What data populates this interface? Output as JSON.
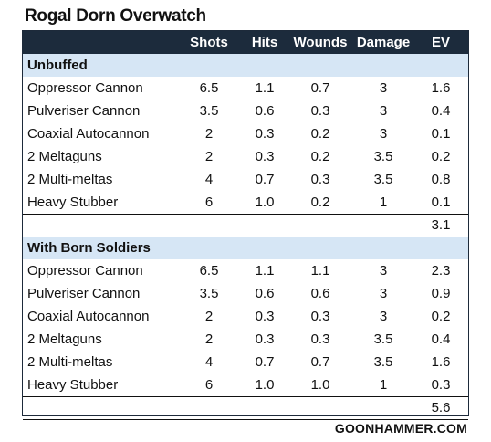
{
  "title": "Rogal Dorn Overwatch",
  "footer": "GOONHAMMER.COM",
  "columns": [
    "",
    "Shots",
    "Hits",
    "Wounds",
    "Damage",
    "EV"
  ],
  "sections": [
    {
      "label": "Unbuffed",
      "rows": [
        [
          "Oppressor Cannon",
          "6.5",
          "1.1",
          "0.7",
          "3",
          "1.6"
        ],
        [
          "Pulveriser Cannon",
          "3.5",
          "0.6",
          "0.3",
          "3",
          "0.4"
        ],
        [
          "Coaxial Autocannon",
          "2",
          "0.3",
          "0.2",
          "3",
          "0.1"
        ],
        [
          "2 Meltaguns",
          "2",
          "0.3",
          "0.2",
          "3.5",
          "0.2"
        ],
        [
          "2 Multi-meltas",
          "4",
          "0.7",
          "0.3",
          "3.5",
          "0.8"
        ],
        [
          "Heavy Stubber",
          "6",
          "1.0",
          "0.2",
          "1",
          "0.1"
        ]
      ],
      "total": "3.1"
    },
    {
      "label": "With Born Soldiers",
      "rows": [
        [
          "Oppressor Cannon",
          "6.5",
          "1.1",
          "1.1",
          "3",
          "2.3"
        ],
        [
          "Pulveriser Cannon",
          "3.5",
          "0.6",
          "0.6",
          "3",
          "0.9"
        ],
        [
          "Coaxial Autocannon",
          "2",
          "0.3",
          "0.3",
          "3",
          "0.2"
        ],
        [
          "2 Meltaguns",
          "2",
          "0.3",
          "0.3",
          "3.5",
          "0.4"
        ],
        [
          "2 Multi-meltas",
          "4",
          "0.7",
          "0.7",
          "3.5",
          "1.6"
        ],
        [
          "Heavy Stubber",
          "6",
          "1.0",
          "1.0",
          "1",
          "0.3"
        ]
      ],
      "total": "5.6"
    }
  ],
  "colors": {
    "header_bg": "#1c2b3c",
    "section_bg": "#d6e6f5"
  }
}
